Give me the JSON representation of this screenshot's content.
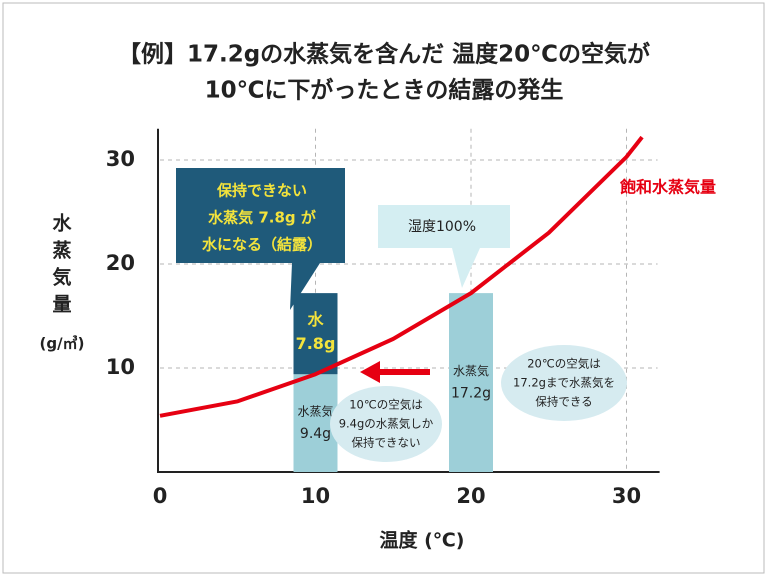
{
  "chart_data": {
    "type": "bar",
    "title": [
      "【例】17.2gの水蒸気を含んだ 温度20℃の空気が",
      "10℃に下がったときの結露の発生"
    ],
    "xlabel": "温度 (℃)",
    "ylabel": [
      "水",
      "蒸",
      "気",
      "量"
    ],
    "ylabel_unit": "(g/㎥)",
    "xlim": [
      0,
      32
    ],
    "ylim": [
      0,
      33
    ],
    "xticks": [
      0,
      10,
      20,
      30
    ],
    "yticks": [
      10,
      20,
      30
    ],
    "grid": true,
    "bar_x": [
      10,
      20
    ],
    "series": [
      {
        "name": "水蒸気",
        "color": "#9dcfd8",
        "text_color": "#222222",
        "values": [
          9.4,
          17.2
        ],
        "value_labels": [
          "9.4g",
          "17.2g"
        ]
      },
      {
        "name": "水",
        "color": "#1f5a7a",
        "text_color": "#f3e33c",
        "values": [
          7.8,
          null
        ],
        "value_labels": [
          "7.8g",
          null
        ]
      }
    ],
    "curve": {
      "type": "line",
      "name": "飽和水蒸気量",
      "color": "#e60012",
      "x": [
        0,
        5,
        10,
        15,
        20,
        25,
        30,
        31
      ],
      "values": [
        5.4,
        6.8,
        9.4,
        12.8,
        17.2,
        23.0,
        30.3,
        32.2
      ]
    },
    "annotations": {
      "condensation": [
        "保持できない",
        "水蒸気 7.8g が",
        "水になる（結露）"
      ],
      "humidity": "湿度100%",
      "note_10": [
        "10℃の空気は",
        "9.4gの水蒸気しか",
        "保持できない"
      ],
      "note_20": [
        "20℃の空気は",
        "17.2gまで水蒸気を",
        "保持できる"
      ]
    }
  }
}
